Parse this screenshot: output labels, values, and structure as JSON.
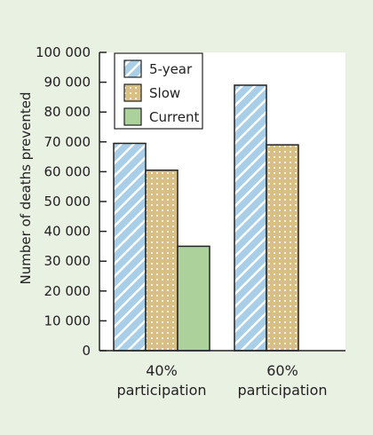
{
  "chart_data": {
    "type": "bar",
    "title": "",
    "xlabel": "",
    "ylabel": "Number of deaths prevented",
    "ylim": [
      0,
      100000
    ],
    "yticks": [
      0,
      10000,
      20000,
      30000,
      40000,
      50000,
      60000,
      70000,
      80000,
      90000,
      100000
    ],
    "ytick_labels": [
      "0",
      "10 000",
      "20 000",
      "30 000",
      "40 000",
      "50 000",
      "60 000",
      "70 000",
      "80 000",
      "90 000",
      "100 000"
    ],
    "categories": [
      {
        "line1": "40%",
        "line2": "participation"
      },
      {
        "line1": "60%",
        "line2": "participation"
      }
    ],
    "series": [
      {
        "name": "5-year",
        "values": [
          69500,
          89000
        ],
        "color": "#a9cfe8",
        "pattern": "diagonal-stripes"
      },
      {
        "name": "Slow",
        "values": [
          60500,
          69000
        ],
        "color": "#d7bf86",
        "pattern": "dots"
      },
      {
        "name": "Current",
        "values": [
          35000,
          null
        ],
        "color": "#acd19a",
        "pattern": "solid"
      }
    ],
    "grid": false,
    "legend": "top-left",
    "colors": {
      "background": "#e9f1e3",
      "plot_area": "#ffffff",
      "axis": "#222222"
    }
  }
}
